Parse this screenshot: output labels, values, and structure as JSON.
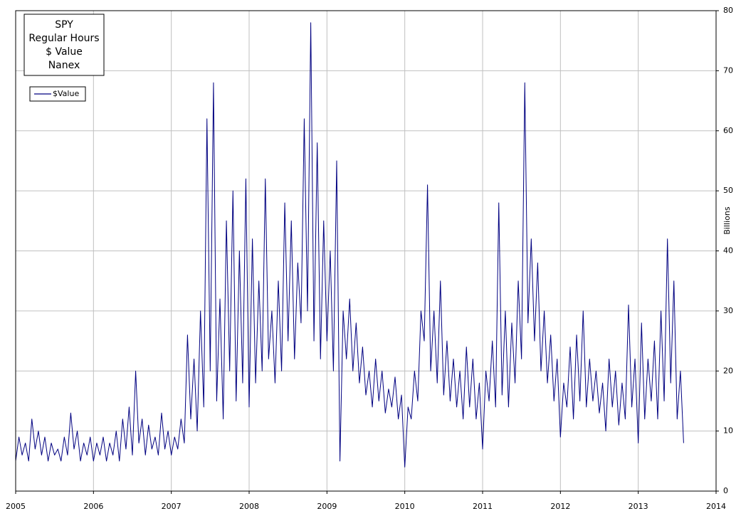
{
  "chart_data": {
    "type": "line",
    "title": [
      "SPY",
      "Regular Hours",
      "$ Value",
      "Nanex"
    ],
    "y_label": "Billions",
    "xlim": [
      2005,
      2014
    ],
    "xticks": [
      2005,
      2006,
      2007,
      2008,
      2009,
      2010,
      2011,
      2012,
      2013,
      2014
    ],
    "ylim": [
      0,
      80
    ],
    "yticks": [
      0,
      10,
      20,
      30,
      40,
      50,
      60,
      70,
      80
    ],
    "grid": true,
    "x": [
      2005.0,
      2005.042,
      2005.083,
      2005.125,
      2005.167,
      2005.208,
      2005.25,
      2005.292,
      2005.333,
      2005.375,
      2005.417,
      2005.458,
      2005.5,
      2005.542,
      2005.583,
      2005.625,
      2005.667,
      2005.708,
      2005.75,
      2005.792,
      2005.833,
      2005.875,
      2005.917,
      2005.958,
      2006.0,
      2006.042,
      2006.083,
      2006.125,
      2006.167,
      2006.208,
      2006.25,
      2006.292,
      2006.333,
      2006.375,
      2006.417,
      2006.458,
      2006.5,
      2006.542,
      2006.583,
      2006.625,
      2006.667,
      2006.708,
      2006.75,
      2006.792,
      2006.833,
      2006.875,
      2006.917,
      2006.958,
      2007.0,
      2007.042,
      2007.083,
      2007.125,
      2007.167,
      2007.208,
      2007.25,
      2007.292,
      2007.333,
      2007.375,
      2007.417,
      2007.458,
      2007.5,
      2007.542,
      2007.583,
      2007.625,
      2007.667,
      2007.708,
      2007.75,
      2007.792,
      2007.833,
      2007.875,
      2007.917,
      2007.958,
      2008.0,
      2008.042,
      2008.083,
      2008.125,
      2008.167,
      2008.208,
      2008.25,
      2008.292,
      2008.333,
      2008.375,
      2008.417,
      2008.458,
      2008.5,
      2008.542,
      2008.583,
      2008.625,
      2008.667,
      2008.708,
      2008.75,
      2008.792,
      2008.833,
      2008.875,
      2008.917,
      2008.958,
      2009.0,
      2009.042,
      2009.083,
      2009.125,
      2009.167,
      2009.208,
      2009.25,
      2009.292,
      2009.333,
      2009.375,
      2009.417,
      2009.458,
      2009.5,
      2009.542,
      2009.583,
      2009.625,
      2009.667,
      2009.708,
      2009.75,
      2009.792,
      2009.833,
      2009.875,
      2009.917,
      2009.958,
      2010.0,
      2010.042,
      2010.083,
      2010.125,
      2010.167,
      2010.208,
      2010.25,
      2010.292,
      2010.333,
      2010.375,
      2010.417,
      2010.458,
      2010.5,
      2010.542,
      2010.583,
      2010.625,
      2010.667,
      2010.708,
      2010.75,
      2010.792,
      2010.833,
      2010.875,
      2010.917,
      2010.958,
      2011.0,
      2011.042,
      2011.083,
      2011.125,
      2011.167,
      2011.208,
      2011.25,
      2011.292,
      2011.333,
      2011.375,
      2011.417,
      2011.458,
      2011.5,
      2011.542,
      2011.583,
      2011.625,
      2011.667,
      2011.708,
      2011.75,
      2011.792,
      2011.833,
      2011.875,
      2011.917,
      2011.958,
      2012.0,
      2012.042,
      2012.083,
      2012.125,
      2012.167,
      2012.208,
      2012.25,
      2012.292,
      2012.333,
      2012.375,
      2012.417,
      2012.458,
      2012.5,
      2012.542,
      2012.583,
      2012.625,
      2012.667,
      2012.708,
      2012.75,
      2012.792,
      2012.833,
      2012.875,
      2012.917,
      2012.958,
      2013.0,
      2013.042,
      2013.083,
      2013.125,
      2013.167,
      2013.208,
      2013.25,
      2013.292,
      2013.333,
      2013.375,
      2013.417,
      2013.458,
      2013.5,
      2013.542,
      2013.583
    ],
    "series": [
      {
        "name": "$Value",
        "color": "#000080",
        "values": [
          5,
          9,
          6,
          8,
          5,
          12,
          7,
          10,
          6,
          9,
          5,
          8,
          6,
          7,
          5,
          9,
          6,
          13,
          7,
          10,
          5,
          8,
          6,
          9,
          5,
          8,
          6,
          9,
          5,
          8,
          6,
          10,
          5,
          12,
          7,
          14,
          6,
          20,
          8,
          12,
          6,
          11,
          7,
          9,
          6,
          13,
          7,
          10,
          6,
          9,
          7,
          12,
          8,
          26,
          12,
          22,
          10,
          30,
          14,
          62,
          20,
          68,
          15,
          32,
          12,
          45,
          20,
          50,
          15,
          40,
          18,
          52,
          14,
          42,
          18,
          35,
          20,
          52,
          22,
          30,
          18,
          35,
          20,
          48,
          25,
          45,
          22,
          38,
          28,
          62,
          30,
          78,
          25,
          58,
          22,
          45,
          25,
          40,
          20,
          55,
          5,
          30,
          22,
          32,
          20,
          28,
          18,
          24,
          16,
          20,
          14,
          22,
          15,
          20,
          13,
          17,
          14,
          19,
          12,
          16,
          4,
          14,
          12,
          20,
          15,
          30,
          25,
          51,
          20,
          30,
          18,
          35,
          16,
          25,
          15,
          22,
          14,
          20,
          12,
          24,
          14,
          22,
          12,
          18,
          7,
          20,
          15,
          25,
          14,
          48,
          16,
          30,
          14,
          28,
          18,
          35,
          22,
          68,
          28,
          42,
          25,
          38,
          20,
          30,
          18,
          26,
          15,
          22,
          9,
          18,
          14,
          24,
          12,
          26,
          15,
          30,
          14,
          22,
          15,
          20,
          13,
          18,
          10,
          22,
          14,
          20,
          11,
          18,
          12,
          31,
          14,
          22,
          8,
          28,
          12,
          22,
          15,
          25,
          12,
          30,
          15,
          42,
          18,
          35,
          12,
          20,
          8
        ]
      }
    ]
  }
}
